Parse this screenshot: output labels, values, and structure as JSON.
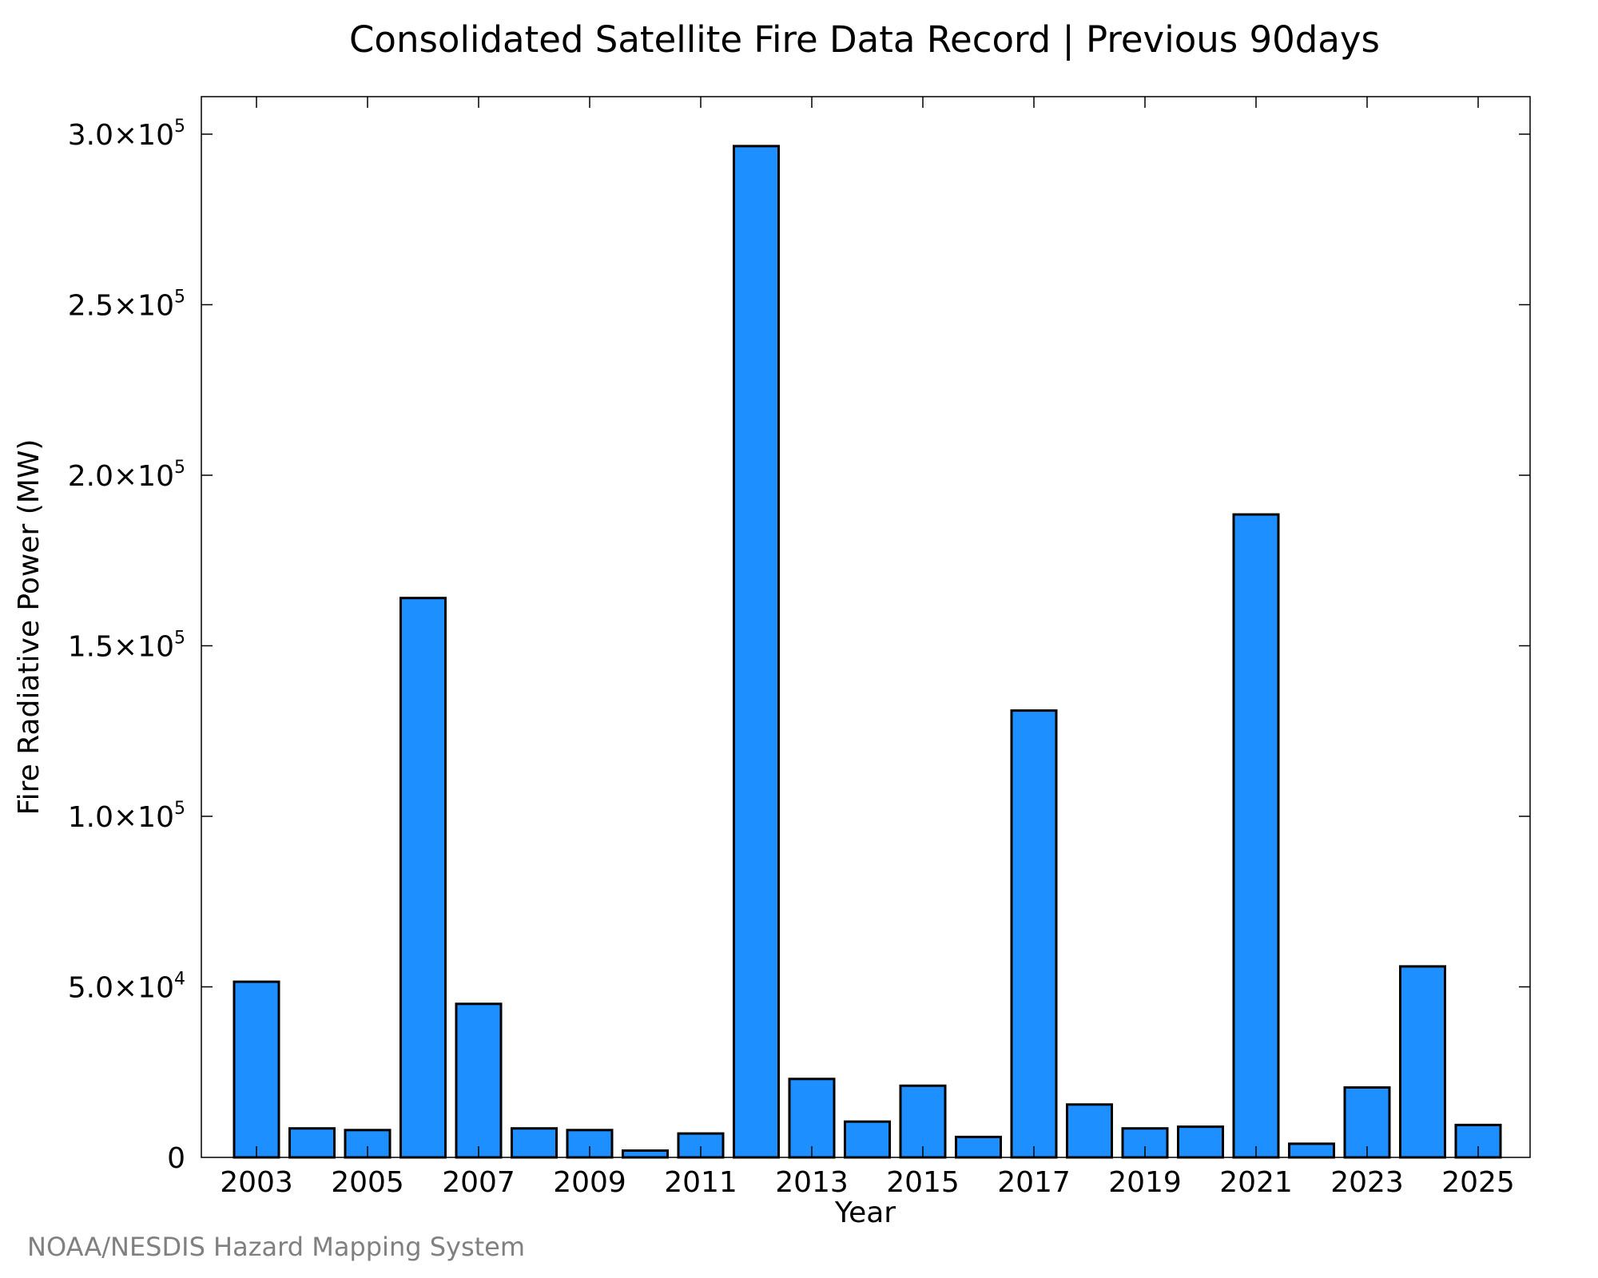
{
  "chart_data": {
    "type": "bar",
    "title": "Consolidated Satellite Fire Data Record | Previous 90days",
    "xlabel": "Year",
    "ylabel": "Fire Radiative Power (MW)",
    "credit": "NOAA/NESDIS Hazard Mapping System",
    "bar_color": "#1e8fff",
    "grid": false,
    "ylim": [
      0,
      311000
    ],
    "categories": [
      2003,
      2004,
      2005,
      2006,
      2007,
      2008,
      2009,
      2010,
      2011,
      2012,
      2013,
      2014,
      2015,
      2016,
      2017,
      2018,
      2019,
      2020,
      2021,
      2022,
      2023,
      2024,
      2025
    ],
    "values": [
      51500,
      8500,
      8000,
      164000,
      45000,
      8500,
      8000,
      2000,
      7000,
      296500,
      23000,
      10500,
      21000,
      6000,
      131000,
      15500,
      8500,
      9000,
      188500,
      4000,
      20500,
      56000,
      9500
    ],
    "x_tick_labels": [
      "2003",
      "2005",
      "2007",
      "2009",
      "2011",
      "2013",
      "2015",
      "2017",
      "2019",
      "2021",
      "2023",
      "2025"
    ],
    "y_ticks": [
      {
        "value": 0,
        "mantissa": "0",
        "exponent": ""
      },
      {
        "value": 50000,
        "mantissa": "5.0×10",
        "exponent": "4"
      },
      {
        "value": 100000,
        "mantissa": "1.0×10",
        "exponent": "5"
      },
      {
        "value": 150000,
        "mantissa": "1.5×10",
        "exponent": "5"
      },
      {
        "value": 200000,
        "mantissa": "2.0×10",
        "exponent": "5"
      },
      {
        "value": 250000,
        "mantissa": "2.5×10",
        "exponent": "5"
      },
      {
        "value": 300000,
        "mantissa": "3.0×10",
        "exponent": "5"
      }
    ]
  }
}
